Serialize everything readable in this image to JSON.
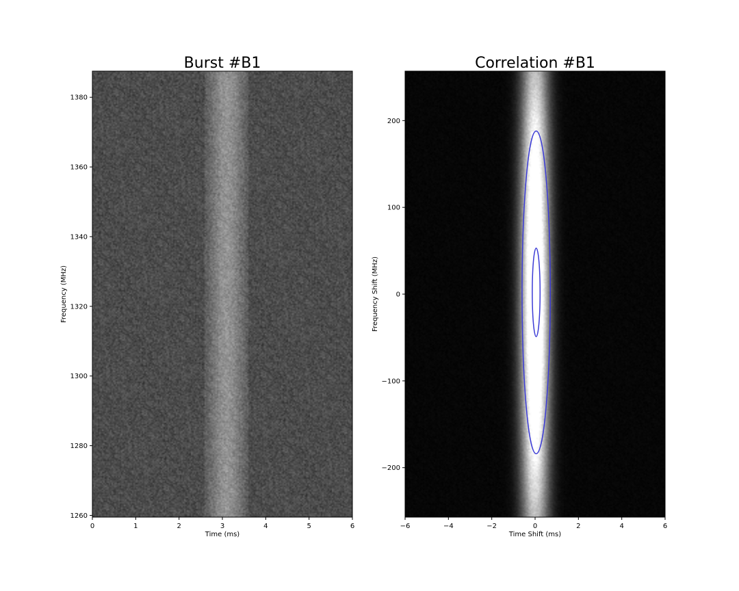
{
  "chart_data": [
    {
      "type": "heatmap",
      "title": "Burst #B1",
      "xlabel": "Time (ms)",
      "ylabel": "Frequency (MHz)",
      "xlim": [
        0,
        6
      ],
      "ylim": [
        1259.5,
        1387.5
      ],
      "xticks": [
        "0",
        "1",
        "2",
        "3",
        "4",
        "5",
        "6"
      ],
      "yticks": [
        "1260",
        "1280",
        "1300",
        "1320",
        "1340",
        "1360",
        "1380"
      ],
      "colormap": "gray",
      "burst": {
        "time_start_ms": 2.6,
        "time_end_ms": 3.6,
        "peak_time_ms": 3.1
      },
      "background_level": 0.3
    },
    {
      "type": "heatmap",
      "title": "Correlation #B1",
      "xlabel": "Time Shift (ms)",
      "ylabel": "Frequency Shift (MHz)",
      "xlim": [
        -6,
        6
      ],
      "ylim": [
        -257,
        257
      ],
      "xticks": [
        "−6",
        "−4",
        "−2",
        "0",
        "2",
        "4",
        "6"
      ],
      "yticks": [
        "−200",
        "−100",
        "0",
        "100",
        "200"
      ],
      "colormap": "gray",
      "contours": [
        {
          "center": [
            0.05,
            2
          ],
          "semi_axes": [
            0.65,
            186
          ],
          "color": "#3b3bd6"
        },
        {
          "center": [
            0.05,
            2
          ],
          "semi_axes": [
            0.18,
            51
          ],
          "color": "#3b3bd6"
        }
      ]
    }
  ]
}
